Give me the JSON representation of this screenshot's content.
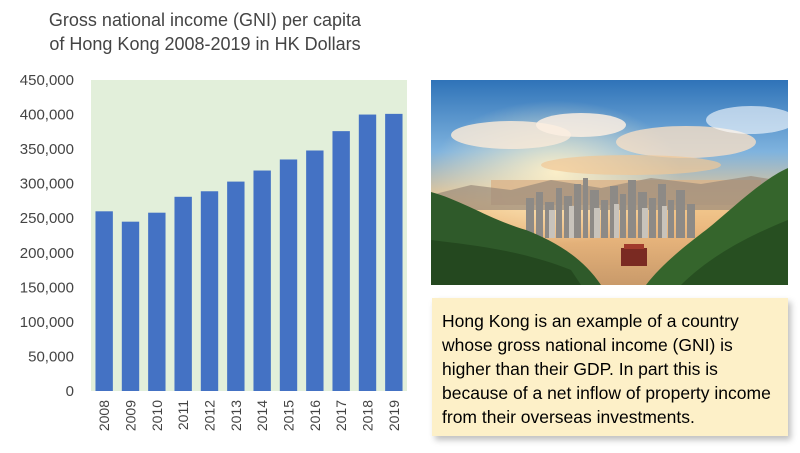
{
  "chart_data": {
    "type": "bar",
    "title_lines": [
      "Gross national income (GNI) per capita",
      "of Hong Kong 2008-2019 in HK Dollars"
    ],
    "categories": [
      "2008",
      "2009",
      "2010",
      "2011",
      "2012",
      "2013",
      "2014",
      "2015",
      "2016",
      "2017",
      "2018",
      "2019"
    ],
    "values": [
      260000,
      245000,
      258000,
      281000,
      289000,
      303000,
      319000,
      335000,
      348000,
      376000,
      400000,
      401000
    ],
    "y_ticks": [
      "0",
      "50,000",
      "100,000",
      "150,000",
      "200,000",
      "250,000",
      "300,000",
      "350,000",
      "400,000",
      "450,000"
    ],
    "ylim": [
      0,
      450000
    ],
    "grid": false,
    "bar_color": "#4472c4",
    "plot_background": "#e2efda"
  },
  "note": {
    "text": "Hong Kong is an example of a country whose gross national income (GNI) is higher than their GDP. In part this is because of a net inflow of property income from their overseas investments."
  },
  "colors": {
    "note_background": "#fdf0c8",
    "title_text": "#444444"
  }
}
